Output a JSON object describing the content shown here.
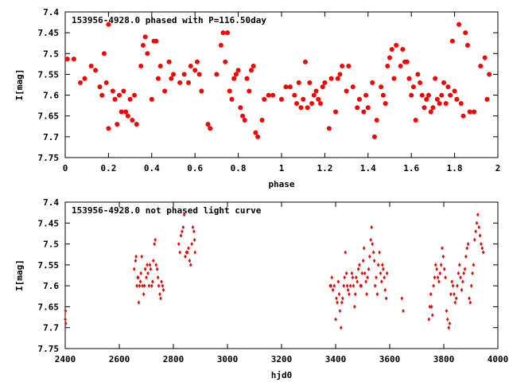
{
  "point_color": "#ff0000",
  "chart_data": [
    {
      "type": "scatter",
      "title": "153956-4928.0 phased with P=116.50day",
      "xlabel": "phase",
      "ylabel": "I[mag]",
      "xlim": [
        0,
        2
      ],
      "ylim": [
        7.75,
        7.4
      ],
      "y_inverted": true,
      "grid": false,
      "marker": "filled-circle",
      "x_ticks": [
        "0",
        "0.2",
        "0.4",
        "0.6",
        "0.8",
        "1",
        "1.2",
        "1.4",
        "1.6",
        "1.8",
        "2"
      ],
      "x_tick_values": [
        0,
        0.2,
        0.4,
        0.6,
        0.8,
        1,
        1.2,
        1.4,
        1.6,
        1.8,
        2
      ],
      "y_ticks": [
        "7.4",
        "7.45",
        "7.5",
        "7.55",
        "7.6",
        "7.65",
        "7.7",
        "7.75"
      ],
      "y_tick_values": [
        7.4,
        7.45,
        7.5,
        7.55,
        7.6,
        7.65,
        7.7,
        7.75
      ],
      "points": [
        [
          0.01,
          7.513
        ],
        [
          0.04,
          7.513
        ],
        [
          0.07,
          7.57
        ],
        [
          0.09,
          7.56
        ],
        [
          0.12,
          7.53
        ],
        [
          0.14,
          7.54
        ],
        [
          0.16,
          7.58
        ],
        [
          0.17,
          7.6
        ],
        [
          0.18,
          7.5
        ],
        [
          0.19,
          7.57
        ],
        [
          0.2,
          7.43
        ],
        [
          0.2,
          7.68
        ],
        [
          0.22,
          7.59
        ],
        [
          0.23,
          7.61
        ],
        [
          0.24,
          7.67
        ],
        [
          0.25,
          7.6
        ],
        [
          0.26,
          7.64
        ],
        [
          0.27,
          7.59
        ],
        [
          0.28,
          7.64
        ],
        [
          0.29,
          7.65
        ],
        [
          0.3,
          7.61
        ],
        [
          0.31,
          7.66
        ],
        [
          0.32,
          7.6
        ],
        [
          0.33,
          7.67
        ],
        [
          0.35,
          7.53
        ],
        [
          0.36,
          7.48
        ],
        [
          0.37,
          7.46
        ],
        [
          0.38,
          7.5
        ],
        [
          0.4,
          7.61
        ],
        [
          0.41,
          7.47
        ],
        [
          0.42,
          7.47
        ],
        [
          0.43,
          7.56
        ],
        [
          0.44,
          7.53
        ],
        [
          0.46,
          7.59
        ],
        [
          0.48,
          7.52
        ],
        [
          0.49,
          7.56
        ],
        [
          0.5,
          7.55
        ],
        [
          0.53,
          7.57
        ],
        [
          0.55,
          7.55
        ],
        [
          0.57,
          7.57
        ],
        [
          0.58,
          7.53
        ],
        [
          0.6,
          7.54
        ],
        [
          0.61,
          7.52
        ],
        [
          0.62,
          7.55
        ],
        [
          0.63,
          7.59
        ],
        [
          0.66,
          7.67
        ],
        [
          0.67,
          7.68
        ],
        [
          0.7,
          7.55
        ],
        [
          0.72,
          7.48
        ],
        [
          0.73,
          7.45
        ],
        [
          0.74,
          7.52
        ],
        [
          0.75,
          7.45
        ],
        [
          0.76,
          7.59
        ],
        [
          0.77,
          7.61
        ],
        [
          0.78,
          7.56
        ],
        [
          0.79,
          7.55
        ],
        [
          0.8,
          7.54
        ],
        [
          0.81,
          7.63
        ],
        [
          0.82,
          7.65
        ],
        [
          0.83,
          7.66
        ],
        [
          0.84,
          7.56
        ],
        [
          0.85,
          7.59
        ],
        [
          0.86,
          7.54
        ],
        [
          0.87,
          7.53
        ],
        [
          0.88,
          7.69
        ],
        [
          0.89,
          7.7
        ],
        [
          0.91,
          7.66
        ],
        [
          0.92,
          7.61
        ],
        [
          0.94,
          7.6
        ],
        [
          0.96,
          7.6
        ],
        [
          1.0,
          7.61
        ],
        [
          1.02,
          7.58
        ],
        [
          1.04,
          7.58
        ],
        [
          1.06,
          7.6
        ],
        [
          1.07,
          7.62
        ],
        [
          1.08,
          7.57
        ],
        [
          1.09,
          7.63
        ],
        [
          1.1,
          7.61
        ],
        [
          1.11,
          7.52
        ],
        [
          1.12,
          7.63
        ],
        [
          1.13,
          7.57
        ],
        [
          1.14,
          7.62
        ],
        [
          1.15,
          7.6
        ],
        [
          1.16,
          7.59
        ],
        [
          1.17,
          7.61
        ],
        [
          1.18,
          7.62
        ],
        [
          1.19,
          7.58
        ],
        [
          1.2,
          7.57
        ],
        [
          1.22,
          7.68
        ],
        [
          1.23,
          7.56
        ],
        [
          1.25,
          7.64
        ],
        [
          1.26,
          7.56
        ],
        [
          1.27,
          7.55
        ],
        [
          1.28,
          7.53
        ],
        [
          1.3,
          7.59
        ],
        [
          1.31,
          7.53
        ],
        [
          1.33,
          7.58
        ],
        [
          1.35,
          7.63
        ],
        [
          1.36,
          7.61
        ],
        [
          1.38,
          7.64
        ],
        [
          1.39,
          7.6
        ],
        [
          1.4,
          7.63
        ],
        [
          1.42,
          7.57
        ],
        [
          1.43,
          7.7
        ],
        [
          1.44,
          7.66
        ],
        [
          1.46,
          7.58
        ],
        [
          1.47,
          7.6
        ],
        [
          1.48,
          7.62
        ],
        [
          1.49,
          7.53
        ],
        [
          1.5,
          7.51
        ],
        [
          1.51,
          7.49
        ],
        [
          1.52,
          7.56
        ],
        [
          1.53,
          7.48
        ],
        [
          1.55,
          7.53
        ],
        [
          1.56,
          7.49
        ],
        [
          1.57,
          7.52
        ],
        [
          1.58,
          7.52
        ],
        [
          1.59,
          7.56
        ],
        [
          1.6,
          7.6
        ],
        [
          1.61,
          7.58
        ],
        [
          1.62,
          7.66
        ],
        [
          1.63,
          7.55
        ],
        [
          1.64,
          7.57
        ],
        [
          1.65,
          7.6
        ],
        [
          1.66,
          7.63
        ],
        [
          1.67,
          7.61
        ],
        [
          1.68,
          7.6
        ],
        [
          1.69,
          7.64
        ],
        [
          1.7,
          7.63
        ],
        [
          1.71,
          7.56
        ],
        [
          1.72,
          7.61
        ],
        [
          1.73,
          7.62
        ],
        [
          1.74,
          7.6
        ],
        [
          1.75,
          7.57
        ],
        [
          1.76,
          7.62
        ],
        [
          1.77,
          7.58
        ],
        [
          1.78,
          7.6
        ],
        [
          1.79,
          7.47
        ],
        [
          1.8,
          7.59
        ],
        [
          1.81,
          7.61
        ],
        [
          1.82,
          7.43
        ],
        [
          1.83,
          7.62
        ],
        [
          1.84,
          7.65
        ],
        [
          1.85,
          7.45
        ],
        [
          1.86,
          7.48
        ],
        [
          1.87,
          7.64
        ],
        [
          1.89,
          7.64
        ],
        [
          1.92,
          7.53
        ],
        [
          1.94,
          7.51
        ],
        [
          1.95,
          7.61
        ],
        [
          1.96,
          7.55
        ]
      ]
    },
    {
      "type": "scatter",
      "title": "153956-4928.0 not phased light curve",
      "xlabel": "hjd0",
      "ylabel": "I[mag]",
      "xlim": [
        2400,
        4000
      ],
      "ylim": [
        7.75,
        7.4
      ],
      "y_inverted": true,
      "grid": false,
      "marker": "small-diamond",
      "x_ticks": [
        "2400",
        "2600",
        "2800",
        "3000",
        "3200",
        "3400",
        "3600",
        "3800",
        "4000"
      ],
      "x_tick_values": [
        2400,
        2600,
        2800,
        3000,
        3200,
        3400,
        3600,
        3800,
        4000
      ],
      "y_ticks": [
        "7.4",
        "7.45",
        "7.5",
        "7.55",
        "7.6",
        "7.65",
        "7.7",
        "7.75"
      ],
      "y_tick_values": [
        7.4,
        7.45,
        7.5,
        7.55,
        7.6,
        7.65,
        7.7,
        7.75
      ],
      "points": [
        [
          2400,
          7.68
        ],
        [
          2401,
          7.66
        ],
        [
          2402,
          7.69
        ],
        [
          2655,
          7.56
        ],
        [
          2660,
          7.54
        ],
        [
          2662,
          7.53
        ],
        [
          2665,
          7.6
        ],
        [
          2668,
          7.58
        ],
        [
          2670,
          7.58
        ],
        [
          2672,
          7.64
        ],
        [
          2675,
          7.6
        ],
        [
          2678,
          7.59
        ],
        [
          2680,
          7.57
        ],
        [
          2683,
          7.53
        ],
        [
          2686,
          7.6
        ],
        [
          2690,
          7.62
        ],
        [
          2693,
          7.6
        ],
        [
          2696,
          7.56
        ],
        [
          2700,
          7.58
        ],
        [
          2703,
          7.55
        ],
        [
          2706,
          7.57
        ],
        [
          2710,
          7.6
        ],
        [
          2713,
          7.55
        ],
        [
          2716,
          7.56
        ],
        [
          2720,
          7.6
        ],
        [
          2723,
          7.59
        ],
        [
          2726,
          7.54
        ],
        [
          2730,
          7.5
        ],
        [
          2733,
          7.49
        ],
        [
          2736,
          7.55
        ],
        [
          2740,
          7.56
        ],
        [
          2743,
          7.58
        ],
        [
          2746,
          7.6
        ],
        [
          2750,
          7.62
        ],
        [
          2753,
          7.63
        ],
        [
          2756,
          7.59
        ],
        [
          2760,
          7.6
        ],
        [
          2763,
          7.61
        ],
        [
          2820,
          7.5
        ],
        [
          2824,
          7.52
        ],
        [
          2828,
          7.48
        ],
        [
          2832,
          7.47
        ],
        [
          2836,
          7.46
        ],
        [
          2840,
          7.43
        ],
        [
          2844,
          7.53
        ],
        [
          2848,
          7.52
        ],
        [
          2852,
          7.52
        ],
        [
          2856,
          7.51
        ],
        [
          2860,
          7.54
        ],
        [
          2864,
          7.55
        ],
        [
          2868,
          7.5
        ],
        [
          2872,
          7.46
        ],
        [
          2876,
          7.47
        ],
        [
          2878,
          7.49
        ],
        [
          2880,
          7.52
        ],
        [
          3380,
          7.6
        ],
        [
          3383,
          7.6
        ],
        [
          3386,
          7.58
        ],
        [
          3390,
          7.61
        ],
        [
          3395,
          7.6
        ],
        [
          3400,
          7.68
        ],
        [
          3403,
          7.63
        ],
        [
          3406,
          7.64
        ],
        [
          3410,
          7.59
        ],
        [
          3413,
          7.62
        ],
        [
          3416,
          7.66
        ],
        [
          3420,
          7.7
        ],
        [
          3423,
          7.64
        ],
        [
          3426,
          7.63
        ],
        [
          3430,
          7.6
        ],
        [
          3433,
          7.58
        ],
        [
          3436,
          7.52
        ],
        [
          3440,
          7.57
        ],
        [
          3443,
          7.6
        ],
        [
          3446,
          7.61
        ],
        [
          3450,
          7.62
        ],
        [
          3455,
          7.6
        ],
        [
          3460,
          7.57
        ],
        [
          3463,
          7.58
        ],
        [
          3466,
          7.6
        ],
        [
          3470,
          7.65
        ],
        [
          3473,
          7.62
        ],
        [
          3476,
          7.58
        ],
        [
          3480,
          7.59
        ],
        [
          3484,
          7.56
        ],
        [
          3488,
          7.55
        ],
        [
          3492,
          7.6
        ],
        [
          3495,
          7.6
        ],
        [
          3498,
          7.57
        ],
        [
          3502,
          7.54
        ],
        [
          3505,
          7.51
        ],
        [
          3508,
          7.57
        ],
        [
          3512,
          7.59
        ],
        [
          3515,
          7.62
        ],
        [
          3518,
          7.58
        ],
        [
          3522,
          7.56
        ],
        [
          3526,
          7.53
        ],
        [
          3530,
          7.49
        ],
        [
          3533,
          7.46
        ],
        [
          3536,
          7.5
        ],
        [
          3540,
          7.52
        ],
        [
          3543,
          7.54
        ],
        [
          3546,
          7.6
        ],
        [
          3550,
          7.58
        ],
        [
          3554,
          7.62
        ],
        [
          3558,
          7.55
        ],
        [
          3562,
          7.52
        ],
        [
          3566,
          7.57
        ],
        [
          3570,
          7.59
        ],
        [
          3573,
          7.55
        ],
        [
          3576,
          7.56
        ],
        [
          3580,
          7.58
        ],
        [
          3583,
          7.61
        ],
        [
          3587,
          7.63
        ],
        [
          3590,
          7.57
        ],
        [
          3645,
          7.63
        ],
        [
          3650,
          7.66
        ],
        [
          3745,
          7.68
        ],
        [
          3748,
          7.65
        ],
        [
          3752,
          7.62
        ],
        [
          3755,
          7.65
        ],
        [
          3758,
          7.67
        ],
        [
          3762,
          7.6
        ],
        [
          3766,
          7.58
        ],
        [
          3770,
          7.55
        ],
        [
          3774,
          7.56
        ],
        [
          3778,
          7.58
        ],
        [
          3782,
          7.59
        ],
        [
          3786,
          7.57
        ],
        [
          3790,
          7.55
        ],
        [
          3794,
          7.51
        ],
        [
          3798,
          7.53
        ],
        [
          3802,
          7.56
        ],
        [
          3806,
          7.58
        ],
        [
          3810,
          7.66
        ],
        [
          3814,
          7.68
        ],
        [
          3818,
          7.7
        ],
        [
          3822,
          7.69
        ],
        [
          3826,
          7.62
        ],
        [
          3830,
          7.59
        ],
        [
          3834,
          7.6
        ],
        [
          3838,
          7.62
        ],
        [
          3842,
          7.64
        ],
        [
          3846,
          7.63
        ],
        [
          3850,
          7.6
        ],
        [
          3854,
          7.57
        ],
        [
          3858,
          7.55
        ],
        [
          3862,
          7.58
        ],
        [
          3866,
          7.61
        ],
        [
          3870,
          7.59
        ],
        [
          3874,
          7.57
        ],
        [
          3878,
          7.56
        ],
        [
          3882,
          7.53
        ],
        [
          3886,
          7.51
        ],
        [
          3890,
          7.5
        ],
        [
          3894,
          7.63
        ],
        [
          3898,
          7.64
        ],
        [
          3902,
          7.6
        ],
        [
          3906,
          7.57
        ],
        [
          3910,
          7.55
        ],
        [
          3914,
          7.49
        ],
        [
          3918,
          7.47
        ],
        [
          3922,
          7.45
        ],
        [
          3926,
          7.43
        ],
        [
          3930,
          7.46
        ],
        [
          3934,
          7.48
        ],
        [
          3938,
          7.5
        ],
        [
          3942,
          7.51
        ],
        [
          3946,
          7.52
        ]
      ]
    }
  ]
}
